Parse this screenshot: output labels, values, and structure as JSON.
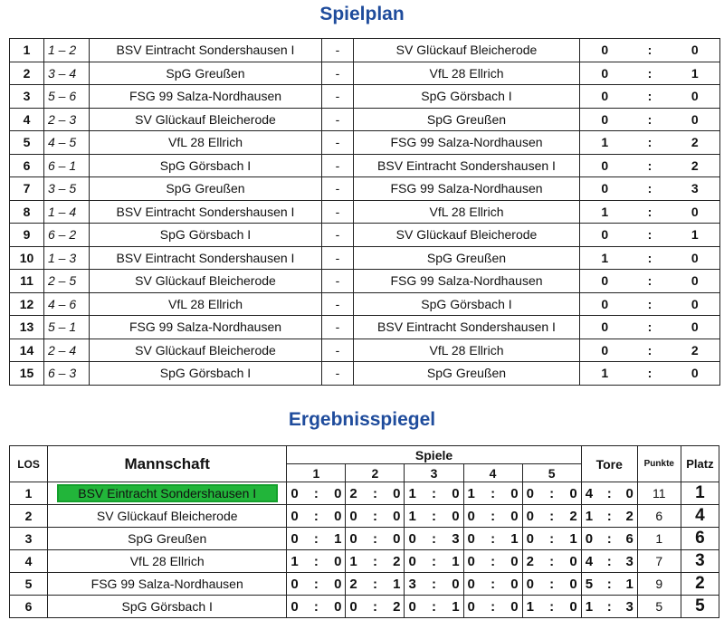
{
  "spielplan": {
    "title": "Spielplan",
    "matches": [
      {
        "nr": "1",
        "pair": "1 – 2",
        "home": "BSV Eintracht Sondershausen I",
        "away": "SV Glückauf Bleicherode",
        "hg": "0",
        "ag": "0"
      },
      {
        "nr": "2",
        "pair": "3 – 4",
        "home": "SpG Greußen",
        "away": "VfL 28 Ellrich",
        "hg": "0",
        "ag": "1"
      },
      {
        "nr": "3",
        "pair": "5 – 6",
        "home": "FSG 99 Salza-Nordhausen",
        "away": "SpG Görsbach I",
        "hg": "0",
        "ag": "0"
      },
      {
        "nr": "4",
        "pair": "2 – 3",
        "home": "SV Glückauf Bleicherode",
        "away": "SpG Greußen",
        "hg": "0",
        "ag": "0"
      },
      {
        "nr": "5",
        "pair": "4 – 5",
        "home": "VfL 28 Ellrich",
        "away": "FSG 99 Salza-Nordhausen",
        "hg": "1",
        "ag": "2"
      },
      {
        "nr": "6",
        "pair": "6 – 1",
        "home": "SpG Görsbach I",
        "away": "BSV Eintracht Sondershausen I",
        "hg": "0",
        "ag": "2"
      },
      {
        "nr": "7",
        "pair": "3 – 5",
        "home": "SpG Greußen",
        "away": "FSG 99 Salza-Nordhausen",
        "hg": "0",
        "ag": "3"
      },
      {
        "nr": "8",
        "pair": "1 – 4",
        "home": "BSV Eintracht Sondershausen I",
        "away": "VfL 28 Ellrich",
        "hg": "1",
        "ag": "0"
      },
      {
        "nr": "9",
        "pair": "6 – 2",
        "home": "SpG Görsbach I",
        "away": "SV Glückauf Bleicherode",
        "hg": "0",
        "ag": "1"
      },
      {
        "nr": "10",
        "pair": "1 – 3",
        "home": "BSV Eintracht Sondershausen I",
        "away": "SpG Greußen",
        "hg": "1",
        "ag": "0"
      },
      {
        "nr": "11",
        "pair": "2 – 5",
        "home": "SV Glückauf Bleicherode",
        "away": "FSG 99 Salza-Nordhausen",
        "hg": "0",
        "ag": "0"
      },
      {
        "nr": "12",
        "pair": "4 – 6",
        "home": "VfL 28 Ellrich",
        "away": "SpG Görsbach I",
        "hg": "0",
        "ag": "0"
      },
      {
        "nr": "13",
        "pair": "5 – 1",
        "home": "FSG 99 Salza-Nordhausen",
        "away": "BSV Eintracht Sondershausen I",
        "hg": "0",
        "ag": "0"
      },
      {
        "nr": "14",
        "pair": "2 – 4",
        "home": "SV Glückauf Bleicherode",
        "away": "VfL 28 Ellrich",
        "hg": "0",
        "ag": "2"
      },
      {
        "nr": "15",
        "pair": "6 – 3",
        "home": "SpG Görsbach I",
        "away": "SpG Greußen",
        "hg": "1",
        "ag": "0"
      }
    ],
    "dash": "-",
    "colon": ":"
  },
  "ergebnisspiegel": {
    "title": "Ergebnisspiegel",
    "headers": {
      "los": "LOS",
      "team": "Mannschaft",
      "spiele": "Spiele",
      "games": [
        "1",
        "2",
        "3",
        "4",
        "5"
      ],
      "tore": "Tore",
      "punkte": "Punkte",
      "platz": "Platz"
    },
    "highlight_color": "#22b53a",
    "rows": [
      {
        "los": "1",
        "team": "BSV Eintracht Sondershausen I",
        "highlight": true,
        "games": [
          [
            "0",
            "0"
          ],
          [
            "2",
            "0"
          ],
          [
            "1",
            "0"
          ],
          [
            "1",
            "0"
          ],
          [
            "0",
            "0"
          ]
        ],
        "tore": [
          "4",
          "0"
        ],
        "punkte": "11",
        "platz": "1"
      },
      {
        "los": "2",
        "team": "SV Glückauf Bleicherode",
        "games": [
          [
            "0",
            "0"
          ],
          [
            "0",
            "0"
          ],
          [
            "1",
            "0"
          ],
          [
            "0",
            "0"
          ],
          [
            "0",
            "2"
          ]
        ],
        "tore": [
          "1",
          "2"
        ],
        "punkte": "6",
        "platz": "4"
      },
      {
        "los": "3",
        "team": "SpG Greußen",
        "games": [
          [
            "0",
            "1"
          ],
          [
            "0",
            "0"
          ],
          [
            "0",
            "3"
          ],
          [
            "0",
            "1"
          ],
          [
            "0",
            "1"
          ]
        ],
        "tore": [
          "0",
          "6"
        ],
        "punkte": "1",
        "platz": "6"
      },
      {
        "los": "4",
        "team": "VfL 28 Ellrich",
        "games": [
          [
            "1",
            "0"
          ],
          [
            "1",
            "2"
          ],
          [
            "0",
            "1"
          ],
          [
            "0",
            "0"
          ],
          [
            "2",
            "0"
          ]
        ],
        "tore": [
          "4",
          "3"
        ],
        "punkte": "7",
        "platz": "3"
      },
      {
        "los": "5",
        "team": "FSG 99 Salza-Nordhausen",
        "games": [
          [
            "0",
            "0"
          ],
          [
            "2",
            "1"
          ],
          [
            "3",
            "0"
          ],
          [
            "0",
            "0"
          ],
          [
            "0",
            "0"
          ]
        ],
        "tore": [
          "5",
          "1"
        ],
        "punkte": "9",
        "platz": "2"
      },
      {
        "los": "6",
        "team": "SpG Görsbach I",
        "games": [
          [
            "0",
            "0"
          ],
          [
            "0",
            "2"
          ],
          [
            "0",
            "1"
          ],
          [
            "0",
            "0"
          ],
          [
            "1",
            "0"
          ]
        ],
        "tore": [
          "1",
          "3"
        ],
        "punkte": "5",
        "platz": "5"
      }
    ]
  }
}
